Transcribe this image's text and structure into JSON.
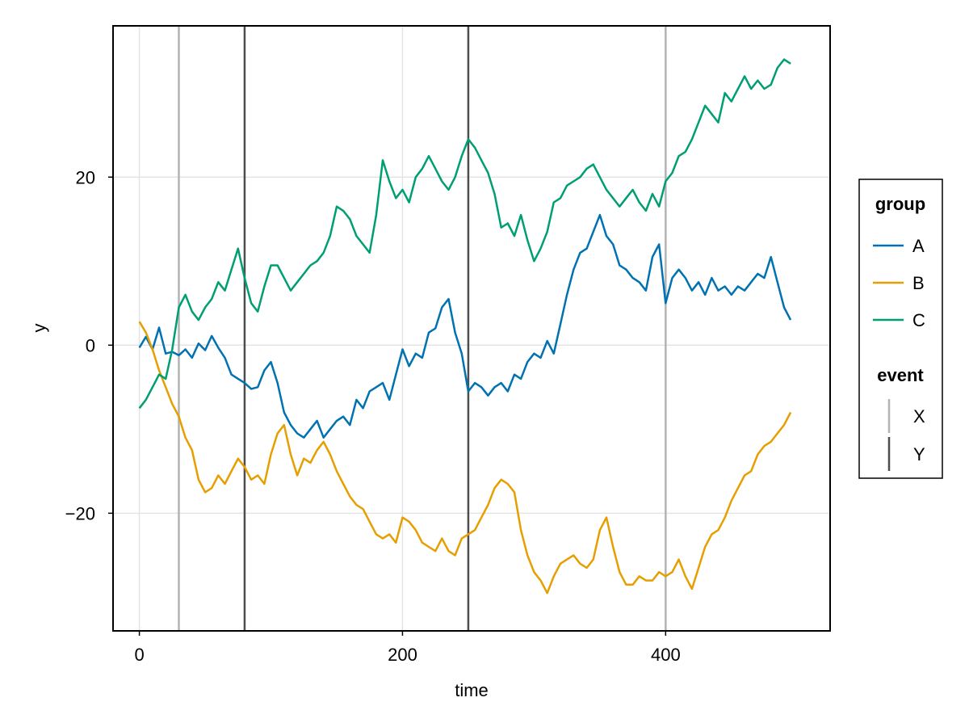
{
  "chart_data": {
    "type": "line",
    "title": "",
    "xlabel": "time",
    "ylabel": "y",
    "xlim": [
      -20,
      525
    ],
    "ylim": [
      -34,
      38
    ],
    "x_ticks": [
      0,
      200,
      400
    ],
    "y_ticks": [
      -20,
      0,
      20
    ],
    "x_tick_labels": [
      "0",
      "200",
      "400"
    ],
    "y_tick_labels": [
      "−20",
      "0",
      "20"
    ],
    "grid": true,
    "legend_position": "right",
    "series_legend_title": "group",
    "event_legend_title": "event",
    "series": [
      {
        "name": "A",
        "color": "#0072b2",
        "x": [
          0,
          5,
          10,
          15,
          20,
          25,
          30,
          35,
          40,
          45,
          50,
          55,
          60,
          65,
          70,
          75,
          80,
          85,
          90,
          95,
          100,
          105,
          110,
          115,
          120,
          125,
          130,
          135,
          140,
          145,
          150,
          155,
          160,
          165,
          170,
          175,
          180,
          185,
          190,
          195,
          200,
          205,
          210,
          215,
          220,
          225,
          230,
          235,
          240,
          245,
          250,
          255,
          260,
          265,
          270,
          275,
          280,
          285,
          290,
          295,
          300,
          305,
          310,
          315,
          320,
          325,
          330,
          335,
          340,
          345,
          350,
          355,
          360,
          365,
          370,
          375,
          380,
          385,
          390,
          395,
          400,
          405,
          410,
          415,
          420,
          425,
          430,
          435,
          440,
          445,
          450,
          455,
          460,
          465,
          470,
          475,
          480,
          485,
          490,
          495
        ],
        "values": [
          -0.3,
          1.0,
          -0.5,
          2.1,
          -1.0,
          -0.8,
          -1.2,
          -0.5,
          -1.5,
          0.2,
          -0.6,
          1.1,
          -0.3,
          -1.5,
          -3.5,
          -4.0,
          -4.5,
          -5.2,
          -5.0,
          -3.0,
          -2.0,
          -4.5,
          -8.0,
          -9.5,
          -10.5,
          -11.0,
          -10.0,
          -9.0,
          -11.0,
          -10.0,
          -9.0,
          -8.5,
          -9.5,
          -6.5,
          -7.5,
          -5.5,
          -5.0,
          -4.5,
          -6.5,
          -3.5,
          -0.5,
          -2.5,
          -1.0,
          -1.5,
          1.5,
          2.0,
          4.5,
          5.5,
          1.5,
          -1.0,
          -5.5,
          -4.5,
          -5.0,
          -6.0,
          -5.0,
          -4.5,
          -5.5,
          -3.5,
          -4.0,
          -2.0,
          -1.0,
          -1.5,
          0.5,
          -1.0,
          2.5,
          6.0,
          9.0,
          11.0,
          11.5,
          13.5,
          15.5,
          13.0,
          12.0,
          9.5,
          9.0,
          8.0,
          7.5,
          6.5,
          10.5,
          12.0,
          5.0,
          8.0,
          9.0,
          8.0,
          6.5,
          7.5,
          6.0,
          8.0,
          6.5,
          7.0,
          6.0,
          7.0,
          6.5,
          7.5,
          8.5,
          8.0,
          10.5,
          7.5,
          4.5,
          3.0
        ]
      },
      {
        "name": "B",
        "color": "#e69f00",
        "x": [
          0,
          5,
          10,
          15,
          20,
          25,
          30,
          35,
          40,
          45,
          50,
          55,
          60,
          65,
          70,
          75,
          80,
          85,
          90,
          95,
          100,
          105,
          110,
          115,
          120,
          125,
          130,
          135,
          140,
          145,
          150,
          155,
          160,
          165,
          170,
          175,
          180,
          185,
          190,
          195,
          200,
          205,
          210,
          215,
          220,
          225,
          230,
          235,
          240,
          245,
          250,
          255,
          260,
          265,
          270,
          275,
          280,
          285,
          290,
          295,
          300,
          305,
          310,
          315,
          320,
          325,
          330,
          335,
          340,
          345,
          350,
          355,
          360,
          365,
          370,
          375,
          380,
          385,
          390,
          395,
          400,
          405,
          410,
          415,
          420,
          425,
          430,
          435,
          440,
          445,
          450,
          455,
          460,
          465,
          470,
          475,
          480,
          485,
          490,
          495
        ],
        "values": [
          2.8,
          1.5,
          -0.5,
          -3.0,
          -5.0,
          -7.0,
          -8.5,
          -11.0,
          -12.5,
          -16.0,
          -17.5,
          -17.0,
          -15.5,
          -16.5,
          -15.0,
          -13.5,
          -14.5,
          -16.0,
          -15.5,
          -16.5,
          -13.0,
          -10.5,
          -9.5,
          -13.0,
          -15.5,
          -13.5,
          -14.0,
          -12.5,
          -11.5,
          -13.0,
          -15.0,
          -16.5,
          -18.0,
          -19.0,
          -19.5,
          -21.0,
          -22.5,
          -23.0,
          -22.5,
          -23.5,
          -20.5,
          -21.0,
          -22.0,
          -23.5,
          -24.0,
          -24.5,
          -23.0,
          -24.5,
          -25.0,
          -23.0,
          -22.5,
          -22.0,
          -20.5,
          -19.0,
          -17.0,
          -16.0,
          -16.5,
          -17.5,
          -22.0,
          -25.0,
          -27.0,
          -28.0,
          -29.5,
          -27.5,
          -26.0,
          -25.5,
          -25.0,
          -26.0,
          -26.5,
          -25.5,
          -22.0,
          -20.5,
          -24.0,
          -27.0,
          -28.5,
          -28.5,
          -27.5,
          -28.0,
          -28.0,
          -27.0,
          -27.5,
          -27.0,
          -25.5,
          -27.5,
          -29.0,
          -26.5,
          -24.0,
          -22.5,
          -22.0,
          -20.5,
          -18.5,
          -17.0,
          -15.5,
          -15.0,
          -13.0,
          -12.0,
          -11.5,
          -10.5,
          -9.5,
          -8.0
        ]
      },
      {
        "name": "C",
        "color": "#009e73",
        "x": [
          0,
          5,
          10,
          15,
          20,
          25,
          30,
          35,
          40,
          45,
          50,
          55,
          60,
          65,
          70,
          75,
          80,
          85,
          90,
          95,
          100,
          105,
          110,
          115,
          120,
          125,
          130,
          135,
          140,
          145,
          150,
          155,
          160,
          165,
          170,
          175,
          180,
          185,
          190,
          195,
          200,
          205,
          210,
          215,
          220,
          225,
          230,
          235,
          240,
          245,
          250,
          255,
          260,
          265,
          270,
          275,
          280,
          285,
          290,
          295,
          300,
          305,
          310,
          315,
          320,
          325,
          330,
          335,
          340,
          345,
          350,
          355,
          360,
          365,
          370,
          375,
          380,
          385,
          390,
          395,
          400,
          405,
          410,
          415,
          420,
          425,
          430,
          435,
          440,
          445,
          450,
          455,
          460,
          465,
          470,
          475,
          480,
          485,
          490,
          495
        ],
        "values": [
          -7.5,
          -6.5,
          -5.0,
          -3.5,
          -4.0,
          -0.5,
          4.5,
          6.0,
          4.0,
          3.0,
          4.5,
          5.5,
          7.5,
          6.5,
          9.0,
          11.5,
          8.0,
          5.0,
          4.0,
          7.0,
          9.5,
          9.5,
          8.0,
          6.5,
          7.5,
          8.5,
          9.5,
          10.0,
          11.0,
          13.0,
          16.5,
          16.0,
          15.0,
          13.0,
          12.0,
          11.0,
          15.5,
          22.0,
          19.5,
          17.5,
          18.5,
          17.0,
          20.0,
          21.0,
          22.5,
          21.0,
          19.5,
          18.5,
          20.0,
          22.5,
          24.5,
          23.5,
          22.0,
          20.5,
          18.0,
          14.0,
          14.5,
          13.0,
          15.5,
          12.5,
          10.0,
          11.5,
          13.5,
          17.0,
          17.5,
          19.0,
          19.5,
          20.0,
          21.0,
          21.5,
          20.0,
          18.5,
          17.5,
          16.5,
          17.5,
          18.5,
          17.0,
          16.0,
          18.0,
          16.5,
          19.5,
          20.5,
          22.5,
          23.0,
          24.5,
          26.5,
          28.5,
          27.5,
          26.5,
          30.0,
          29.0,
          30.5,
          32.0,
          30.5,
          31.5,
          30.5,
          31.0,
          33.0,
          34.0,
          33.5
        ]
      }
    ],
    "events": [
      {
        "label": "X",
        "color": "#b3b3b3",
        "x": [
          30,
          400
        ]
      },
      {
        "label": "Y",
        "color": "#4d4d4d",
        "x": [
          80,
          250
        ]
      }
    ]
  }
}
